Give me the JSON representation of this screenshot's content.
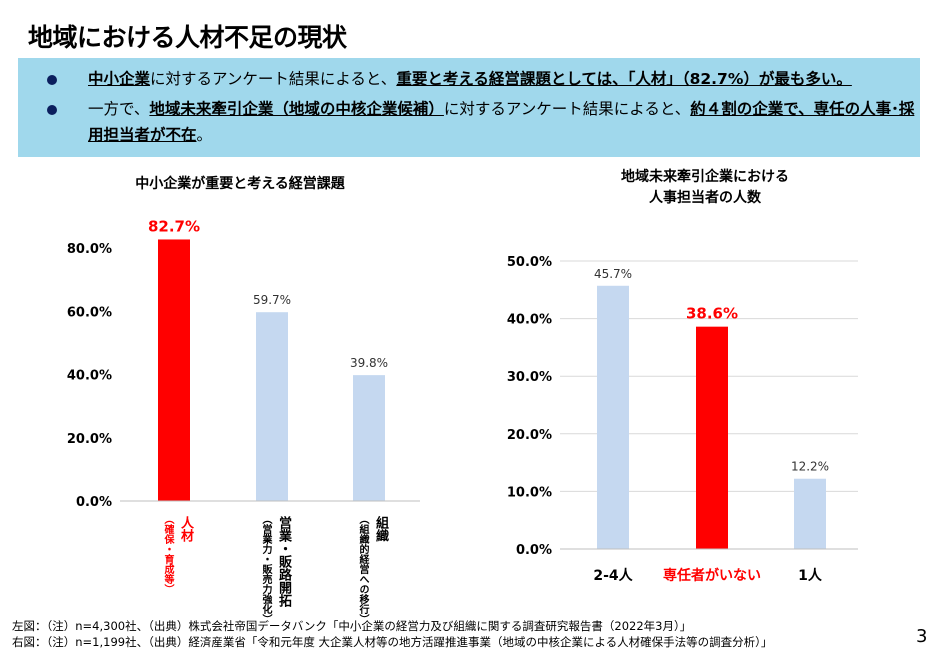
{
  "title": "地域における人材不足の現状",
  "bullets": [
    [
      {
        "t": "中小企業",
        "b": true
      },
      {
        "t": "に対するアンケート結果によると、",
        "b": false
      },
      {
        "t": "重要と考える経営課題としては、「人材」（82.7%）が最も多い。",
        "b": true
      }
    ],
    [
      {
        "t": "一方で、",
        "b": false
      },
      {
        "t": "地域未来牽引企業（地域の中核企業候補）",
        "b": true
      },
      {
        "t": "に対するアンケート結果によると、",
        "b": false
      },
      {
        "t": "約４割の企業で、専任の人事･採用担当者が不在",
        "b": true
      },
      {
        "t": "。",
        "b": false
      }
    ]
  ],
  "colors": {
    "highlight": "#ff0000",
    "bar": "#c5d8f0",
    "box": "#a0d8ec",
    "bullet": "#0b1f5e"
  },
  "chart_data": [
    {
      "type": "bar",
      "title": "中小企業が重要と考える経営課題",
      "categories": [
        {
          "main": "人材",
          "sub": "（確保・育成等）"
        },
        {
          "main": "営業・販路開拓",
          "sub": "（営業力・販売力強化）"
        },
        {
          "main": "組織",
          "sub": "（組織的経営への移行）"
        }
      ],
      "values": [
        82.7,
        59.7,
        39.8
      ],
      "labels": [
        "82.7%",
        "59.7%",
        "39.8%"
      ],
      "highlight": [
        true,
        false,
        false
      ],
      "yticks": [
        "0.0%",
        "20.0%",
        "40.0%",
        "60.0%",
        "80.0%"
      ],
      "ylim": [
        0,
        80
      ],
      "grid": false
    },
    {
      "type": "bar",
      "title": "地域未来牽引企業における\n人事担当者の人数",
      "categories": [
        "2-4人",
        "専任者がいない",
        "1人"
      ],
      "values": [
        45.7,
        38.6,
        12.2
      ],
      "labels": [
        "45.7%",
        "38.6%",
        "12.2%"
      ],
      "highlight": [
        false,
        true,
        false
      ],
      "yticks": [
        "0.0%",
        "10.0%",
        "20.0%",
        "30.0%",
        "40.0%",
        "50.0%"
      ],
      "ylim": [
        0,
        50
      ],
      "grid": true
    }
  ],
  "footnotes": [
    "左図：（注）n=4,300社、（出典）株式会社帝国データバンク「中小企業の経営力及び組織に関する調査研究報告書（2022年3月）」",
    "右図：（注）n=1,199社、（出典）経済産業省「令和元年度 大企業人材等の地方活躍推進事業（地域の中核企業による人材確保手法等の調査分析）」"
  ],
  "page": "3"
}
